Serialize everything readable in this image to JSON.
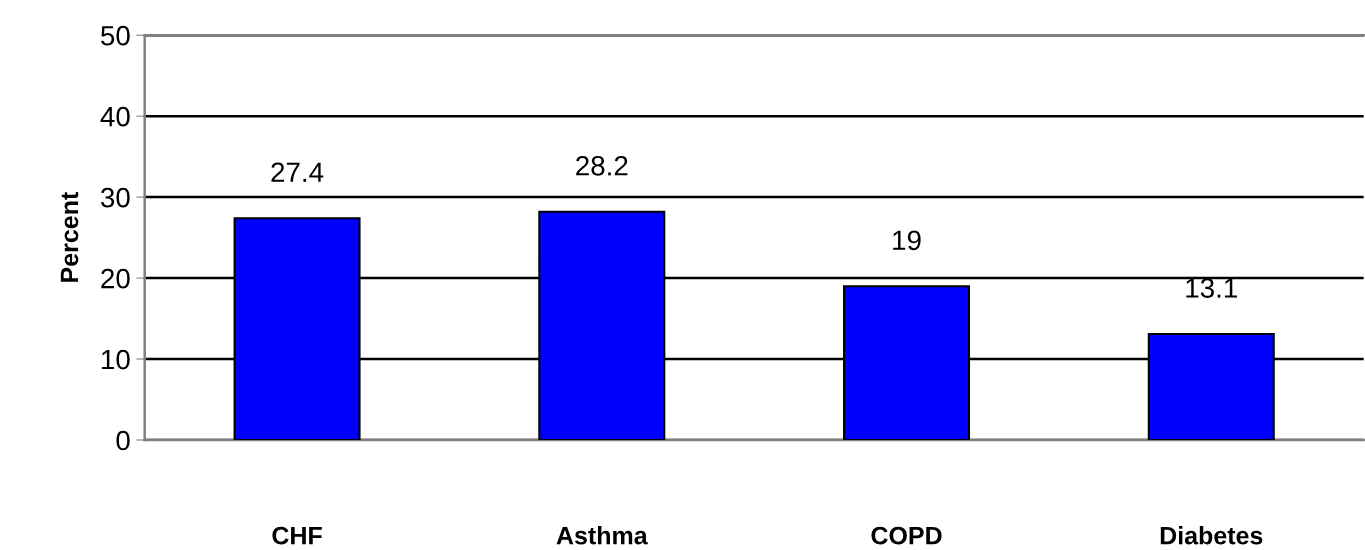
{
  "chart_data": {
    "type": "bar",
    "ylabel": "Percent",
    "categories": [
      "CHF",
      "Asthma",
      "COPD",
      "Diabetes"
    ],
    "values": [
      27.4,
      28.2,
      19,
      13.1
    ],
    "color": "#0000ff",
    "ylim": [
      0,
      50
    ],
    "yticks": [
      0,
      10,
      20,
      30,
      40,
      50
    ],
    "grid": "y",
    "data_labels": true
  }
}
